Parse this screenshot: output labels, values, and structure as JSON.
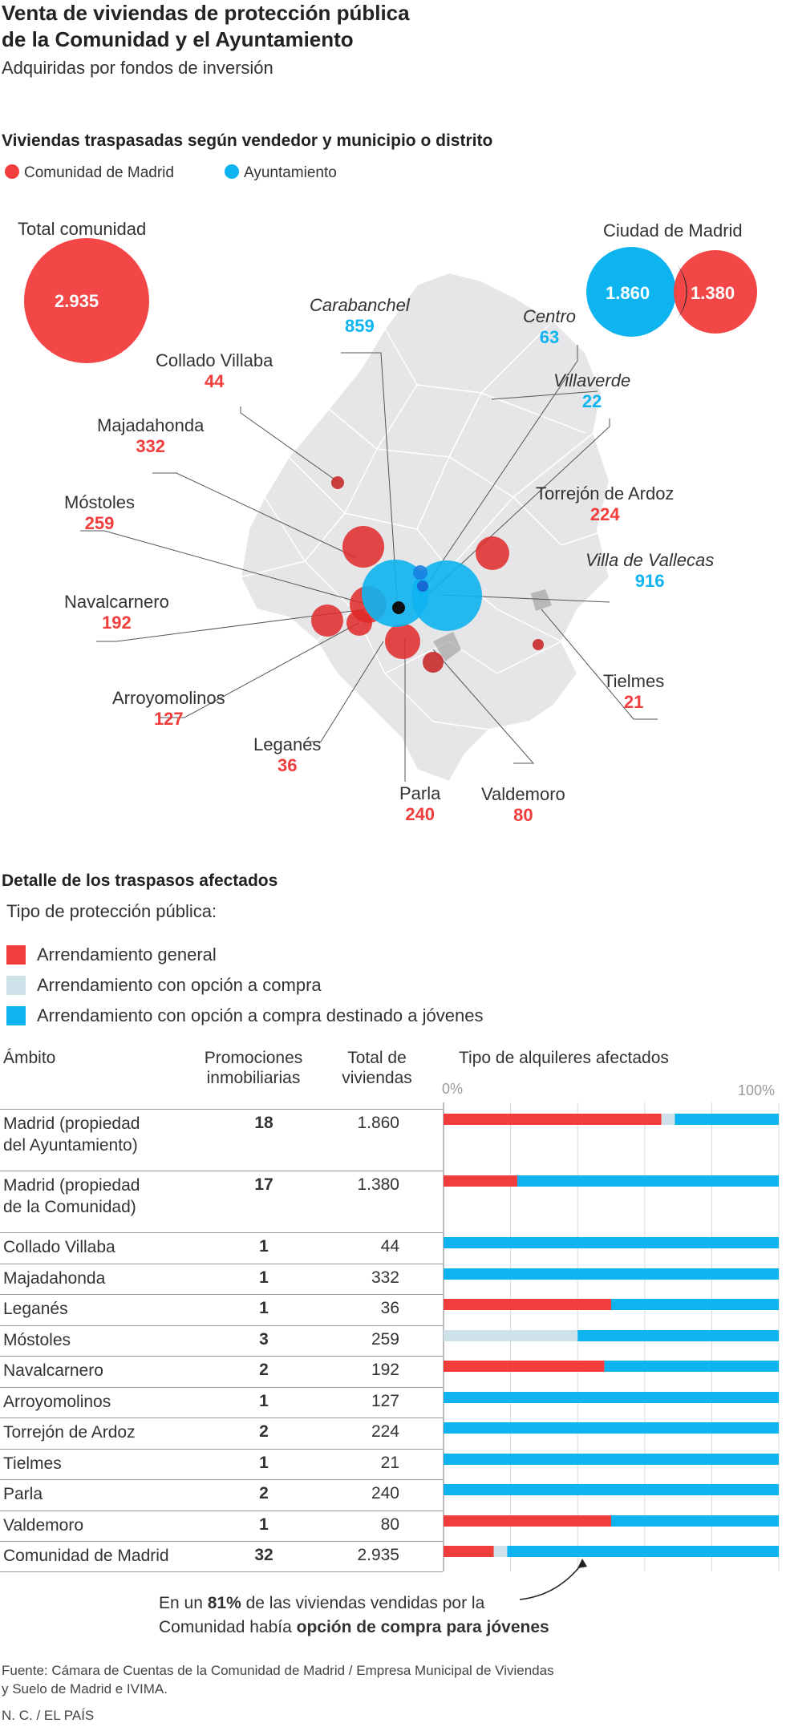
{
  "title_line1": "Venta de viviendas de protección pública",
  "title_line2": "de la Comunidad y el Ayuntamiento",
  "subtitle": "Adquiridas por fondos de inversión",
  "map_section": {
    "heading": "Viviendas traspasadas según vendedor y municipio o distrito",
    "legend": [
      {
        "label": "Comunidad de Madrid",
        "color": "#f23d3d"
      },
      {
        "label": "Ayuntamiento",
        "color": "#0db4f0"
      }
    ],
    "total_comunidad": {
      "label": "Total comunidad",
      "value": "2.935"
    },
    "ciudad_madrid": {
      "label": "Ciudad de Madrid",
      "ayuntamiento": "1.860",
      "comunidad": "1.380"
    },
    "places": [
      {
        "id": "carabanchel",
        "name": "Carabanchel",
        "value": "859",
        "seller": "ayuntamiento"
      },
      {
        "id": "centro",
        "name": "Centro",
        "value": "63",
        "seller": "ayuntamiento"
      },
      {
        "id": "villaverde",
        "name": "Villaverde",
        "value": "22",
        "seller": "ayuntamiento"
      },
      {
        "id": "villa-vallecas",
        "name": "Villa de Vallecas",
        "value": "916",
        "seller": "ayuntamiento"
      },
      {
        "id": "collado-villaba",
        "name": "Collado Villaba",
        "value": "44",
        "seller": "comunidad"
      },
      {
        "id": "majadahonda",
        "name": "Majadahonda",
        "value": "332",
        "seller": "comunidad"
      },
      {
        "id": "mostoles",
        "name": "Móstoles",
        "value": "259",
        "seller": "comunidad"
      },
      {
        "id": "navalcarnero",
        "name": "Navalcarnero",
        "value": "192",
        "seller": "comunidad"
      },
      {
        "id": "arroyomolinos",
        "name": "Arroyomolinos",
        "value": "127",
        "seller": "comunidad"
      },
      {
        "id": "leganes",
        "name": "Leganés",
        "value": "36",
        "seller": "comunidad"
      },
      {
        "id": "parla",
        "name": "Parla",
        "value": "240",
        "seller": "comunidad"
      },
      {
        "id": "valdemoro",
        "name": "Valdemoro",
        "value": "80",
        "seller": "comunidad"
      },
      {
        "id": "tielmes",
        "name": "Tielmes",
        "value": "21",
        "seller": "comunidad"
      },
      {
        "id": "torrejon",
        "name": "Torrejón de Ardoz",
        "value": "224",
        "seller": "comunidad"
      }
    ]
  },
  "detail": {
    "heading": "Detalle de los traspasos afectados",
    "subheading": "Tipo de protección pública:",
    "categories": [
      {
        "label": "Arrendamiento general",
        "color": "#f23d3d"
      },
      {
        "label": "Arrendamiento con opción a compra",
        "color": "#cfe2ea"
      },
      {
        "label": "Arrendamiento con opción a compra destinado a jóvenes",
        "color": "#0db4f0"
      }
    ],
    "col_ambito": "Ámbito",
    "col_prom_1": "Promociones",
    "col_prom_2": "inmobiliarias",
    "col_total_1": "Total de",
    "col_total_2": "viviendas",
    "col_tipo": "Tipo de alquileres afectados",
    "axis_min": "0%",
    "axis_max": "100%",
    "annotation_pre": "En un ",
    "annotation_pct": "81%",
    "annotation_mid": " de las viviendas vendidas por la",
    "annotation_line2_pre": "Comunidad había ",
    "annotation_line2_bold": "opción de compra para jóvenes"
  },
  "chart_data": {
    "type": "bar",
    "stacked": true,
    "orientation": "horizontal",
    "title": "Tipo de alquileres afectados",
    "xlim": [
      0,
      100
    ],
    "categories": [
      "Madrid (propiedad del Ayuntamiento)",
      "Madrid (propiedad de la Comunidad)",
      "Collado Villaba",
      "Majadahonda",
      "Leganés",
      "Móstoles",
      "Navalcarnero",
      "Arroyomolinos",
      "Torrejón de Ardoz",
      "Tielmes",
      "Parla",
      "Valdemoro",
      "Comunidad de Madrid"
    ],
    "rows": [
      {
        "name_l1": "Madrid (propiedad",
        "name_l2": "del Ayuntamiento)",
        "promociones": "18",
        "total": "1.860"
      },
      {
        "name_l1": "Madrid (propiedad",
        "name_l2": "de la Comunidad)",
        "promociones": "17",
        "total": "1.380"
      },
      {
        "name_l1": "Collado Villaba",
        "name_l2": "",
        "promociones": "1",
        "total": "44"
      },
      {
        "name_l1": "Majadahonda",
        "name_l2": "",
        "promociones": "1",
        "total": "332"
      },
      {
        "name_l1": "Leganés",
        "name_l2": "",
        "promociones": "1",
        "total": "36"
      },
      {
        "name_l1": "Móstoles",
        "name_l2": "",
        "promociones": "3",
        "total": "259"
      },
      {
        "name_l1": "Navalcarnero",
        "name_l2": "",
        "promociones": "2",
        "total": "192"
      },
      {
        "name_l1": "Arroyomolinos",
        "name_l2": "",
        "promociones": "1",
        "total": "127"
      },
      {
        "name_l1": "Torrejón de Ardoz",
        "name_l2": "",
        "promociones": "2",
        "total": "224"
      },
      {
        "name_l1": "Tielmes",
        "name_l2": "",
        "promociones": "1",
        "total": "21"
      },
      {
        "name_l1": "Parla",
        "name_l2": "",
        "promociones": "2",
        "total": "240"
      },
      {
        "name_l1": "Valdemoro",
        "name_l2": "",
        "promociones": "1",
        "total": "80"
      },
      {
        "name_l1": "Comunidad de Madrid",
        "name_l2": "",
        "promociones": "32",
        "total": "2.935"
      }
    ],
    "series": [
      {
        "name": "Arrendamiento general",
        "color": "#f23d3d",
        "values": [
          65,
          22,
          0,
          0,
          50,
          0,
          48,
          0,
          0,
          0,
          0,
          50,
          15
        ]
      },
      {
        "name": "Arrendamiento con opción a compra",
        "color": "#cfe2ea",
        "values": [
          4,
          0,
          0,
          0,
          0,
          40,
          0,
          0,
          0,
          0,
          0,
          0,
          4
        ]
      },
      {
        "name": "Arrendamiento con opción a compra destinado a jóvenes",
        "color": "#0db4f0",
        "values": [
          31,
          78,
          100,
          100,
          50,
          60,
          52,
          100,
          100,
          100,
          100,
          50,
          81
        ]
      }
    ]
  },
  "footer": {
    "source_l1": "Fuente: Cámara de Cuentas de la Comunidad de Madrid / Empresa Municipal de Viviendas",
    "source_l2": "y Suelo de Madrid e IVIMA.",
    "credit": "N. C. / EL PAÍS"
  }
}
